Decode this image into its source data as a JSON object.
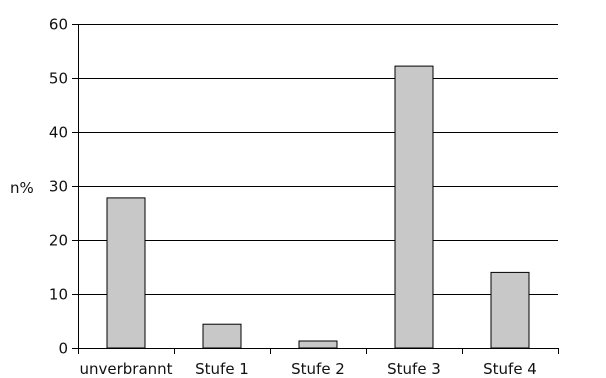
{
  "chart_data": {
    "type": "bar",
    "categories": [
      "unverbrannt",
      "Stufe 1",
      "Stufe 2",
      "Stufe 3",
      "Stufe 4"
    ],
    "values": [
      27.8,
      4.4,
      1.3,
      52.2,
      14.0
    ],
    "title": "",
    "xlabel": "",
    "ylabel": "n%",
    "ylim": [
      0,
      60
    ],
    "yticks": [
      0,
      10,
      20,
      30,
      40,
      50,
      60
    ],
    "grid": true,
    "legend": "none",
    "bar_color": "#c8c8c8",
    "bar_edge_color": "#000000",
    "grid_color": "#000000"
  }
}
